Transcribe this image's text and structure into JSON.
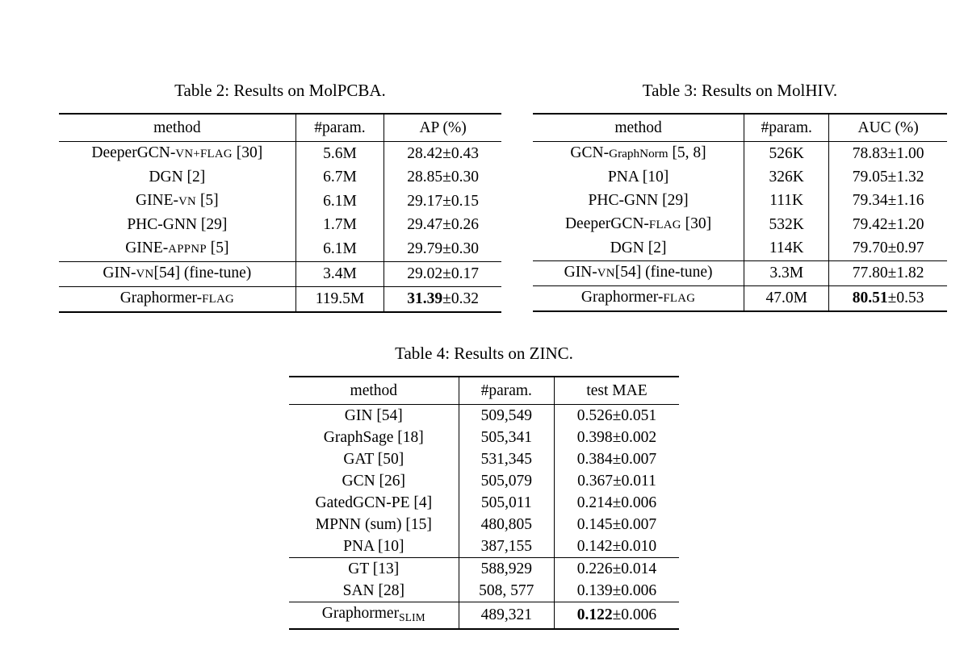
{
  "page": {
    "background": "#ffffff",
    "text_color": "#000000"
  },
  "tables": [
    {
      "caption": "Table 2: Results on MolPCBA.",
      "columns": [
        "method",
        "#param.",
        "AP (%)"
      ],
      "separators_before": [
        5,
        6
      ],
      "rows": [
        {
          "method": [
            [
              "DeeperGCN-"
            ],
            [
              "VN+FLAG",
              "sc"
            ],
            [
              " [30]"
            ]
          ],
          "param": "5.6M",
          "value": [
            [
              "28.42±0.43"
            ]
          ]
        },
        {
          "method": [
            [
              "DGN [2]"
            ]
          ],
          "param": "6.7M",
          "value": [
            [
              "28.85±0.30"
            ]
          ]
        },
        {
          "method": [
            [
              "GINE-"
            ],
            [
              "VN",
              "sc"
            ],
            [
              " [5]"
            ]
          ],
          "param": "6.1M",
          "value": [
            [
              "29.17±0.15"
            ]
          ]
        },
        {
          "method": [
            [
              "PHC-GNN [29]"
            ]
          ],
          "param": "1.7M",
          "value": [
            [
              "29.47±0.26"
            ]
          ]
        },
        {
          "method": [
            [
              "GINE-"
            ],
            [
              "APPNP",
              "sc"
            ],
            [
              " [5]"
            ]
          ],
          "param": "6.1M",
          "value": [
            [
              "29.79±0.30"
            ]
          ]
        },
        {
          "method": [
            [
              "GIN-"
            ],
            [
              "VN",
              "sc"
            ],
            [
              "[54] (fine-tune)"
            ]
          ],
          "param": "3.4M",
          "value": [
            [
              "29.02±0.17"
            ]
          ]
        },
        {
          "method": [
            [
              "Graphormer-"
            ],
            [
              "FLAG",
              "sc"
            ]
          ],
          "param": "119.5M",
          "value": [
            [
              "31.39",
              "b"
            ],
            [
              "±0.32"
            ]
          ]
        }
      ]
    },
    {
      "caption": "Table 3: Results on MolHIV.",
      "columns": [
        "method",
        "#param.",
        "AUC (%)"
      ],
      "separators_before": [
        5,
        6
      ],
      "rows": [
        {
          "method": [
            [
              "GCN-"
            ],
            [
              "GraphNorm",
              "small"
            ],
            [
              " [5, 8]"
            ]
          ],
          "param": "526K",
          "value": [
            [
              "78.83±1.00"
            ]
          ]
        },
        {
          "method": [
            [
              "PNA [10]"
            ]
          ],
          "param": "326K",
          "value": [
            [
              "79.05±1.32"
            ]
          ]
        },
        {
          "method": [
            [
              "PHC-GNN [29]"
            ]
          ],
          "param": "111K",
          "value": [
            [
              "79.34±1.16"
            ]
          ]
        },
        {
          "method": [
            [
              "DeeperGCN-"
            ],
            [
              "FLAG",
              "sc"
            ],
            [
              " [30]"
            ]
          ],
          "param": "532K",
          "value": [
            [
              "79.42±1.20"
            ]
          ]
        },
        {
          "method": [
            [
              "DGN [2]"
            ]
          ],
          "param": "114K",
          "value": [
            [
              "79.70±0.97"
            ]
          ]
        },
        {
          "method": [
            [
              "GIN-"
            ],
            [
              "VN",
              "sc"
            ],
            [
              "[54] (fine-tune)"
            ]
          ],
          "param": "3.3M",
          "value": [
            [
              "77.80±1.82"
            ]
          ]
        },
        {
          "method": [
            [
              "Graphormer-"
            ],
            [
              "FLAG",
              "sc"
            ]
          ],
          "param": "47.0M",
          "value": [
            [
              "80.51",
              "b"
            ],
            [
              "±0.53"
            ]
          ]
        }
      ]
    },
    {
      "caption": "Table 4: Results on ZINC.",
      "columns": [
        "method",
        "#param.",
        "test MAE"
      ],
      "separators_before": [
        7,
        9
      ],
      "rows": [
        {
          "method": [
            [
              "GIN [54]"
            ]
          ],
          "param": "509,549",
          "value": [
            [
              "0.526±0.051"
            ]
          ]
        },
        {
          "method": [
            [
              "GraphSage [18]"
            ]
          ],
          "param": "505,341",
          "value": [
            [
              "0.398±0.002"
            ]
          ]
        },
        {
          "method": [
            [
              "GAT [50]"
            ]
          ],
          "param": "531,345",
          "value": [
            [
              "0.384±0.007"
            ]
          ]
        },
        {
          "method": [
            [
              "GCN [26]"
            ]
          ],
          "param": "505,079",
          "value": [
            [
              "0.367±0.011"
            ]
          ]
        },
        {
          "method": [
            [
              "GatedGCN-PE [4]"
            ]
          ],
          "param": "505,011",
          "value": [
            [
              "0.214±0.006"
            ]
          ]
        },
        {
          "method": [
            [
              "MPNN (sum) [15]"
            ]
          ],
          "param": "480,805",
          "value": [
            [
              "0.145±0.007"
            ]
          ]
        },
        {
          "method": [
            [
              "PNA [10]"
            ]
          ],
          "param": "387,155",
          "value": [
            [
              "0.142±0.010"
            ]
          ]
        },
        {
          "method": [
            [
              "GT [13]"
            ]
          ],
          "param": "588,929",
          "value": [
            [
              "0.226±0.014"
            ]
          ]
        },
        {
          "method": [
            [
              "SAN [28]"
            ]
          ],
          "param": "508, 577",
          "value": [
            [
              "0.139±0.006"
            ]
          ]
        },
        {
          "method": [
            [
              "Graphormer"
            ],
            [
              "SLIM",
              "sub"
            ]
          ],
          "param": "489,321",
          "value": [
            [
              "0.122",
              "b"
            ],
            [
              "±0.006"
            ]
          ]
        }
      ]
    }
  ]
}
